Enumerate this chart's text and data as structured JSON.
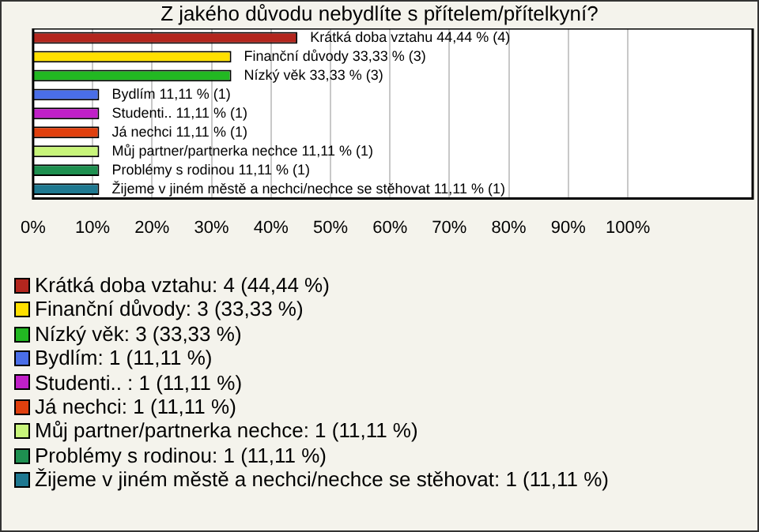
{
  "chart_data": {
    "type": "bar",
    "orientation": "horizontal",
    "title": "Z jakého důvodu nebydlíte s přítelem/přítelkyní?",
    "categories": [
      "Krátká doba vztahu",
      "Finanční důvody",
      "Nízký věk",
      "Bydlím",
      "Studenti..",
      "Já nechci",
      "Můj partner/partnerka nechce",
      "Problémy s rodinou",
      "Žijeme v jiném městě a nechci/nechce se stěhovat"
    ],
    "values": [
      44.44,
      33.33,
      33.33,
      11.11,
      11.11,
      11.11,
      11.11,
      11.11,
      11.11
    ],
    "colors": [
      "#b3261e",
      "#ffe000",
      "#22b822",
      "#4a6ee8",
      "#c020c8",
      "#e0400e",
      "#c8f57a",
      "#1e9050",
      "#1e7890"
    ],
    "value_labels": [
      "44,44 % (4)",
      "33,33 % (3)",
      "33,33 % (3)",
      "11,11 % (1)",
      "11,11 % (1)",
      "11,11 % (1)",
      "11,11 % (1)",
      "11,11 % (1)",
      "11,11 % (1)"
    ],
    "xlim": [
      0,
      121
    ],
    "xticks": [
      {
        "value": 0,
        "label": "0%"
      },
      {
        "value": 10,
        "label": "10%"
      },
      {
        "value": 20,
        "label": "20%"
      },
      {
        "value": 30,
        "label": "30%"
      },
      {
        "value": 40,
        "label": "40%"
      },
      {
        "value": 50,
        "label": "50%"
      },
      {
        "value": 60,
        "label": "60%"
      },
      {
        "value": 70,
        "label": "70%"
      },
      {
        "value": 80,
        "label": "80%"
      },
      {
        "value": 90,
        "label": "90%"
      },
      {
        "value": 100,
        "label": "100%"
      }
    ],
    "grid": "x",
    "tick_labels": "x",
    "annotations": [
      "Krátká doba vztahu: 4 (44,44 %)",
      "Finanční důvody: 3 (33,33 %)",
      "Nízký věk: 3 (33,33 %)",
      "Bydlím: 1 (11,11 %)",
      "Studenti.. : 1 (11,11 %)",
      "Já nechci: 1 (11,11 %)",
      "Můj partner/partnerka nechce: 1 (11,11 %)",
      "Problémy s rodinou: 1 (11,11 %)",
      "Žijeme v jiném městě a nechci/nechce se stěhovat: 1 (11,11 %)"
    ]
  }
}
